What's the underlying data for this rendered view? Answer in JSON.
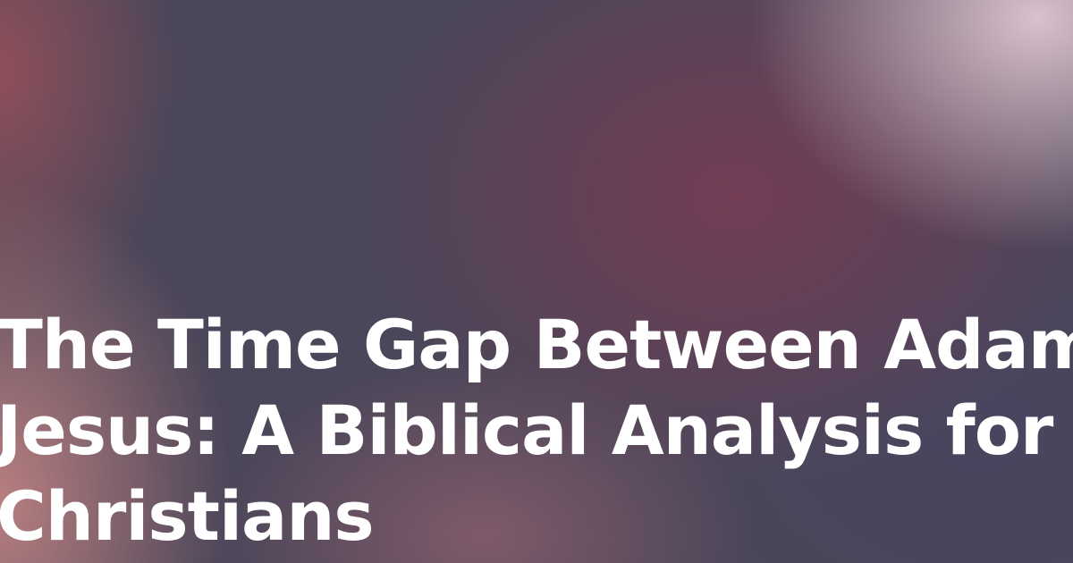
{
  "header": {
    "title_lines": [
      "The Time Gap Between Adam and",
      "Jesus: A Biblical Analysis for",
      "Christians"
    ]
  }
}
